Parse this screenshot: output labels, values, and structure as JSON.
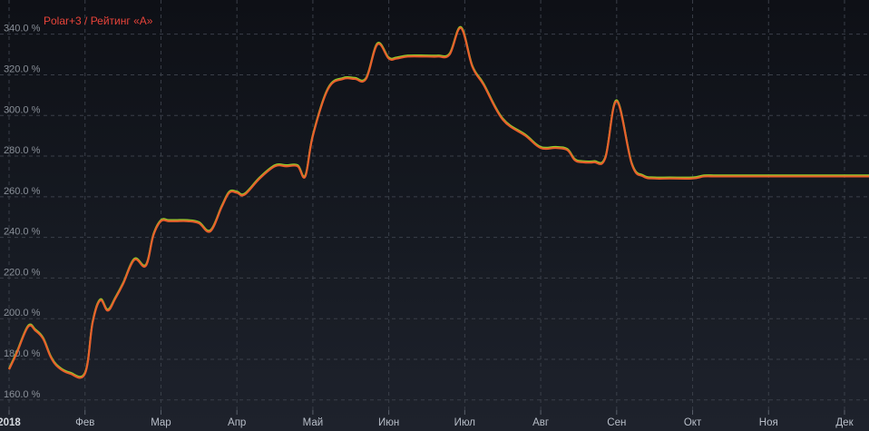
{
  "chart_data": {
    "type": "line",
    "title": "",
    "xlabel": "",
    "ylabel": "",
    "ylim": [
      155,
      347
    ],
    "y_ticks": [
      "160.0 %",
      "180.0 %",
      "200.0 %",
      "220.0 %",
      "240.0 %",
      "260.0 %",
      "280.0 %",
      "300.0 %",
      "320.0 %",
      "340.0 %"
    ],
    "y_tick_values": [
      160,
      180,
      200,
      220,
      240,
      260,
      280,
      300,
      320,
      340
    ],
    "x_ticks": [
      "2018",
      "Фев",
      "Мар",
      "Апр",
      "Май",
      "Июн",
      "Июл",
      "Авг",
      "Сен",
      "Окт",
      "Ноя",
      "Дек"
    ],
    "xlim": [
      0,
      11.4
    ],
    "grid": true,
    "legend_position": "top-left",
    "series": [
      {
        "name": "Polar+3 / Рейтинг «А»",
        "color": "#e8602c",
        "shadow_color": "#8fd12a",
        "x": [
          0,
          0.1,
          0.25,
          0.35,
          0.45,
          0.55,
          0.65,
          0.8,
          1.0,
          1.1,
          1.2,
          1.3,
          1.4,
          1.5,
          1.65,
          1.8,
          1.9,
          2.0,
          2.1,
          2.2,
          2.35,
          2.5,
          2.65,
          2.8,
          2.9,
          3.0,
          3.1,
          3.3,
          3.5,
          3.65,
          3.8,
          3.9,
          4.0,
          4.2,
          4.4,
          4.55,
          4.7,
          4.85,
          5.0,
          5.1,
          5.25,
          5.5,
          5.65,
          5.8,
          5.95,
          6.1,
          6.25,
          6.5,
          6.8,
          7.0,
          7.2,
          7.35,
          7.45,
          7.55,
          7.7,
          7.85,
          8.0,
          8.2,
          8.35,
          8.5,
          8.7,
          9.0,
          9.15,
          9.3,
          9.5,
          9.75,
          9.9,
          10.05,
          10.15,
          10.3,
          10.5,
          10.8,
          11.0,
          11.2,
          11.4
        ],
        "y": [
          175,
          183,
          196,
          194,
          190,
          181,
          176,
          173,
          173,
          198,
          209,
          204,
          210,
          217,
          229,
          226,
          241,
          248,
          248,
          248,
          248,
          247,
          243,
          255,
          262,
          262,
          261,
          269,
          275,
          275,
          275,
          270,
          290,
          313,
          318,
          318,
          318,
          335,
          328,
          328,
          329,
          329,
          329,
          330,
          343,
          324,
          315,
          298,
          290,
          284,
          284,
          283,
          278,
          277,
          277,
          279,
          307,
          276,
          270,
          269,
          269,
          269,
          270,
          270,
          270,
          270,
          270,
          270,
          270,
          270,
          270,
          270,
          270,
          270,
          270
        ]
      }
    ]
  }
}
